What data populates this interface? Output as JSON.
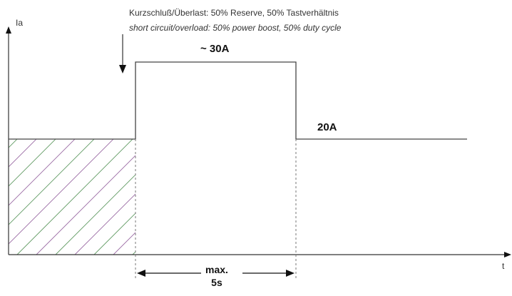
{
  "annotation": {
    "de": "Kurzschluß/Überlast:  50% Reserve, 50% Tastverhältnis",
    "en": "short circuit/overload: 50% power boost, 50% duty cycle"
  },
  "axes": {
    "y_label": "Ia",
    "x_label": "t"
  },
  "levels": {
    "peak": "~ 30A",
    "continuous": "20A"
  },
  "duration": {
    "line1": "max.",
    "line2": "5s"
  },
  "colors": {
    "axis": "#333333",
    "waveform": "#444444",
    "hatch": [
      "#5f9a62",
      "#9a6aa4"
    ],
    "dashed": "#777777"
  }
}
